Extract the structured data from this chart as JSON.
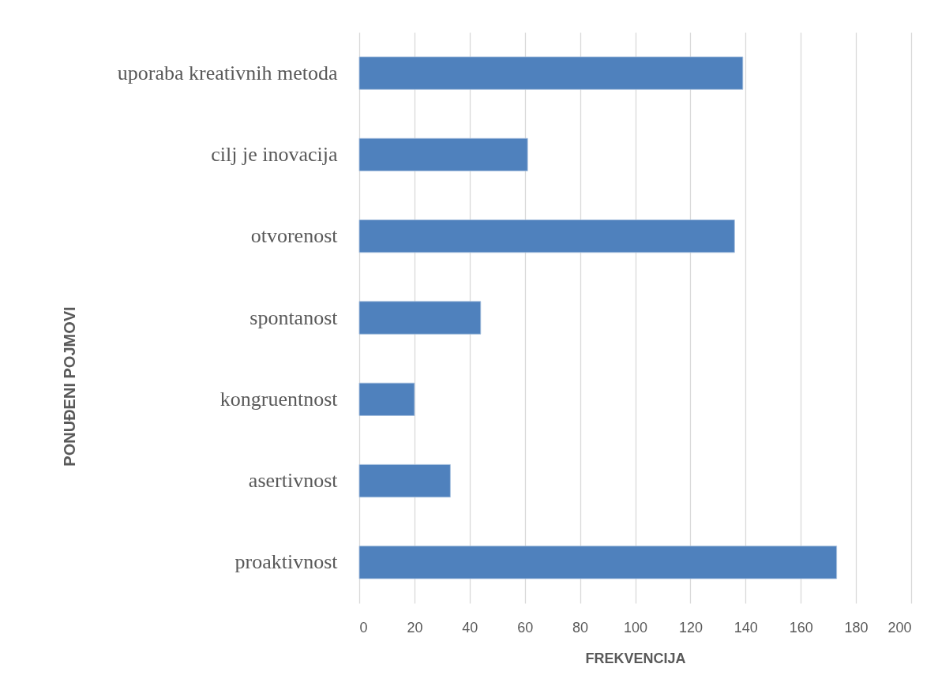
{
  "chart_data": {
    "type": "bar",
    "orientation": "horizontal",
    "categories": [
      "uporaba kreativnih metoda",
      "cilj je inovacija",
      "otvorenost",
      "spontanost",
      "kongruentnost",
      "asertivnost",
      "proaktivnost"
    ],
    "values": [
      139,
      61,
      136,
      44,
      20,
      33,
      173
    ],
    "color": "#4f81bd",
    "xlabel": "FREKVENCIJA",
    "ylabel": "PONUĐENI POJMOVI",
    "xlim": [
      0,
      200
    ],
    "xticks": [
      0,
      20,
      40,
      60,
      80,
      100,
      120,
      140,
      160,
      180,
      200
    ],
    "grid": "x"
  }
}
